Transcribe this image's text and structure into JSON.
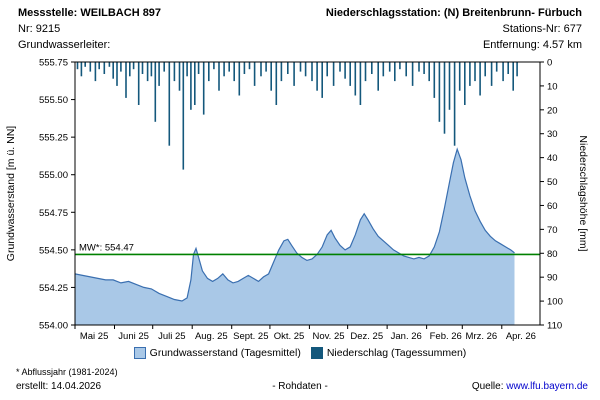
{
  "header": {
    "left_line1": "Messstelle: WEILBACH 897",
    "left_line2": "Nr: 9215",
    "left_line3": "Grundwasserleiter:",
    "right_line1": "Niederschlagsstation: (N) Breitenbrunn- Fürbuch",
    "right_line2": "Stations-Nr: 677",
    "right_line3": "Entfernung: 4.57 km"
  },
  "footer": {
    "note": "* Abflussjahr (1981-2024)",
    "created": "erstellt:  14.04.2026",
    "center": "- Rohdaten -",
    "source_label": "Quelle:",
    "source_link": "www.lfu.bayern.de"
  },
  "colors": {
    "area_fill": "#a9c8e7",
    "area_stroke": "#3a6fb0",
    "bar_color": "#14587c",
    "mean_line": "#008000",
    "link": "#0000cc"
  },
  "chart_data": {
    "type": "area+bar",
    "x_axis": {
      "total_days": 365,
      "month_ticks": [
        {
          "label": "Mai 25",
          "day": 0
        },
        {
          "label": "Juni 25",
          "day": 31
        },
        {
          "label": "Juli 25",
          "day": 61
        },
        {
          "label": "Aug. 25",
          "day": 92
        },
        {
          "label": "Sept. 25",
          "day": 123
        },
        {
          "label": "Okt. 25",
          "day": 153
        },
        {
          "label": "Nov. 25",
          "day": 184
        },
        {
          "label": "Dez. 25",
          "day": 214
        },
        {
          "label": "Jan. 26",
          "day": 245
        },
        {
          "label": "Feb. 26",
          "day": 276
        },
        {
          "label": "Mrz. 26",
          "day": 304
        },
        {
          "label": "Apr. 26",
          "day": 335
        }
      ]
    },
    "y_left": {
      "label": "Grundwasserstand [m ü. NN]",
      "min": 554.0,
      "max": 555.75,
      "ticks": [
        "554.00",
        "554.25",
        "554.50",
        "554.75",
        "555.00",
        "555.25",
        "555.50",
        "555.75"
      ]
    },
    "y_right": {
      "label": "Niederschlagshöhe [mm]",
      "min": 0,
      "max": 110,
      "ticks": [
        "0",
        "10",
        "20",
        "30",
        "40",
        "50",
        "60",
        "70",
        "80",
        "90",
        "100",
        "110"
      ]
    },
    "mean_line": {
      "label": "MW*: 554.47",
      "value": 554.47
    },
    "series": [
      {
        "name": "Grundwasserstand (Tagesmittel)",
        "type": "area",
        "points": [
          [
            0,
            554.34
          ],
          [
            6,
            554.33
          ],
          [
            12,
            554.32
          ],
          [
            18,
            554.31
          ],
          [
            24,
            554.3
          ],
          [
            30,
            554.3
          ],
          [
            36,
            554.28
          ],
          [
            42,
            554.29
          ],
          [
            48,
            554.27
          ],
          [
            54,
            554.25
          ],
          [
            60,
            554.24
          ],
          [
            66,
            554.21
          ],
          [
            72,
            554.19
          ],
          [
            78,
            554.17
          ],
          [
            84,
            554.16
          ],
          [
            88,
            554.18
          ],
          [
            91,
            554.3
          ],
          [
            93,
            554.47
          ],
          [
            95,
            554.51
          ],
          [
            97,
            554.45
          ],
          [
            100,
            554.36
          ],
          [
            104,
            554.31
          ],
          [
            108,
            554.29
          ],
          [
            112,
            554.31
          ],
          [
            116,
            554.34
          ],
          [
            120,
            554.3
          ],
          [
            124,
            554.28
          ],
          [
            128,
            554.29
          ],
          [
            132,
            554.31
          ],
          [
            136,
            554.33
          ],
          [
            140,
            554.31
          ],
          [
            144,
            554.29
          ],
          [
            148,
            554.32
          ],
          [
            152,
            554.34
          ],
          [
            156,
            554.42
          ],
          [
            160,
            554.5
          ],
          [
            164,
            554.56
          ],
          [
            167,
            554.57
          ],
          [
            170,
            554.53
          ],
          [
            174,
            554.48
          ],
          [
            178,
            554.45
          ],
          [
            182,
            554.43
          ],
          [
            186,
            554.44
          ],
          [
            190,
            554.47
          ],
          [
            194,
            554.52
          ],
          [
            198,
            554.6
          ],
          [
            201,
            554.63
          ],
          [
            204,
            554.58
          ],
          [
            208,
            554.53
          ],
          [
            212,
            554.5
          ],
          [
            216,
            554.52
          ],
          [
            220,
            554.6
          ],
          [
            224,
            554.7
          ],
          [
            227,
            554.74
          ],
          [
            230,
            554.7
          ],
          [
            234,
            554.64
          ],
          [
            238,
            554.59
          ],
          [
            242,
            554.56
          ],
          [
            246,
            554.53
          ],
          [
            250,
            554.5
          ],
          [
            254,
            554.48
          ],
          [
            258,
            554.46
          ],
          [
            262,
            554.45
          ],
          [
            266,
            554.44
          ],
          [
            270,
            554.45
          ],
          [
            274,
            554.44
          ],
          [
            278,
            554.46
          ],
          [
            282,
            554.52
          ],
          [
            286,
            554.62
          ],
          [
            290,
            554.78
          ],
          [
            294,
            554.95
          ],
          [
            297,
            555.08
          ],
          [
            300,
            555.17
          ],
          [
            303,
            555.1
          ],
          [
            306,
            554.98
          ],
          [
            310,
            554.86
          ],
          [
            314,
            554.76
          ],
          [
            318,
            554.69
          ],
          [
            322,
            554.63
          ],
          [
            326,
            554.59
          ],
          [
            330,
            554.56
          ],
          [
            334,
            554.54
          ],
          [
            338,
            554.52
          ],
          [
            342,
            554.5
          ],
          [
            345,
            554.48
          ]
        ]
      },
      {
        "name": "Niederschlag (Tagessummen)",
        "type": "bar",
        "points": [
          [
            2,
            3
          ],
          [
            5,
            6
          ],
          [
            8,
            2
          ],
          [
            12,
            4
          ],
          [
            16,
            8
          ],
          [
            19,
            3
          ],
          [
            23,
            5
          ],
          [
            27,
            2
          ],
          [
            30,
            7
          ],
          [
            33,
            10
          ],
          [
            36,
            4
          ],
          [
            40,
            15
          ],
          [
            43,
            6
          ],
          [
            46,
            3
          ],
          [
            50,
            18
          ],
          [
            53,
            5
          ],
          [
            57,
            8
          ],
          [
            60,
            6
          ],
          [
            63,
            25
          ],
          [
            66,
            10
          ],
          [
            70,
            4
          ],
          [
            74,
            35
          ],
          [
            78,
            8
          ],
          [
            82,
            12
          ],
          [
            85,
            45
          ],
          [
            88,
            6
          ],
          [
            91,
            20
          ],
          [
            94,
            18
          ],
          [
            97,
            5
          ],
          [
            101,
            22
          ],
          [
            105,
            8
          ],
          [
            109,
            3
          ],
          [
            113,
            12
          ],
          [
            117,
            6
          ],
          [
            121,
            4
          ],
          [
            125,
            8
          ],
          [
            129,
            14
          ],
          [
            133,
            5
          ],
          [
            137,
            3
          ],
          [
            141,
            10
          ],
          [
            146,
            6
          ],
          [
            150,
            4
          ],
          [
            154,
            12
          ],
          [
            158,
            18
          ],
          [
            162,
            8
          ],
          [
            167,
            5
          ],
          [
            172,
            10
          ],
          [
            177,
            4
          ],
          [
            181,
            6
          ],
          [
            186,
            8
          ],
          [
            190,
            12
          ],
          [
            194,
            15
          ],
          [
            198,
            6
          ],
          [
            203,
            10
          ],
          [
            208,
            4
          ],
          [
            212,
            7
          ],
          [
            216,
            10
          ],
          [
            220,
            14
          ],
          [
            224,
            18
          ],
          [
            228,
            8
          ],
          [
            233,
            5
          ],
          [
            238,
            12
          ],
          [
            242,
            6
          ],
          [
            247,
            4
          ],
          [
            251,
            8
          ],
          [
            255,
            3
          ],
          [
            260,
            6
          ],
          [
            265,
            10
          ],
          [
            270,
            4
          ],
          [
            274,
            5
          ],
          [
            278,
            8
          ],
          [
            282,
            15
          ],
          [
            286,
            25
          ],
          [
            290,
            30
          ],
          [
            294,
            20
          ],
          [
            298,
            35
          ],
          [
            302,
            12
          ],
          [
            306,
            18
          ],
          [
            310,
            10
          ],
          [
            314,
            8
          ],
          [
            318,
            14
          ],
          [
            322,
            6
          ],
          [
            327,
            10
          ],
          [
            331,
            4
          ],
          [
            336,
            8
          ],
          [
            340,
            5
          ],
          [
            344,
            12
          ],
          [
            347,
            6
          ]
        ]
      }
    ]
  }
}
